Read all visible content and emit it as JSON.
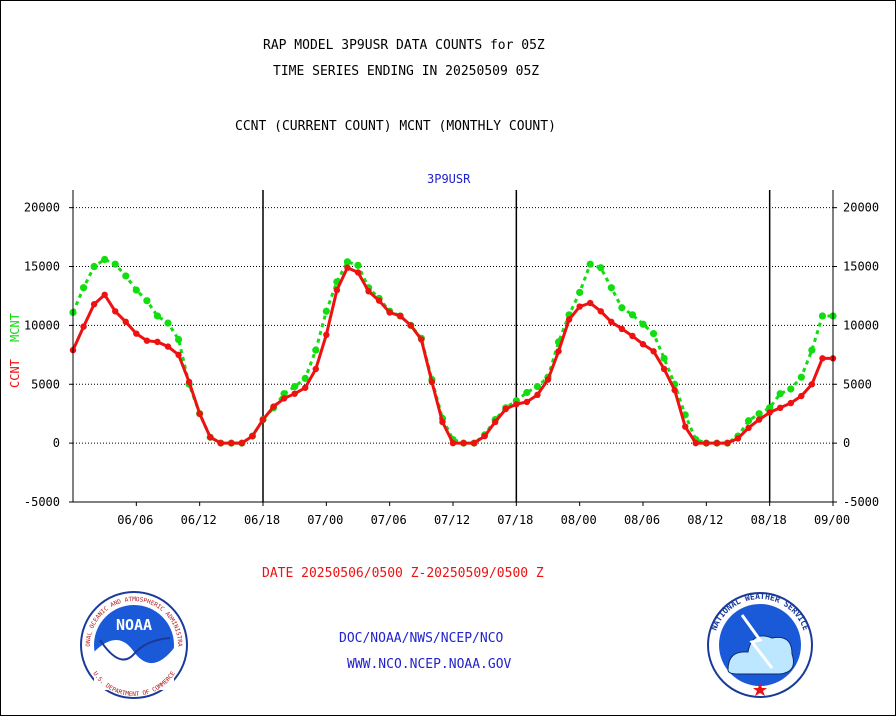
{
  "header": {
    "title_line1": "RAP MODEL 3P9USR DATA COUNTS for 05Z",
    "title_line2": "TIME SERIES ENDING IN 20250509 05Z",
    "subtitle": "CCNT (CURRENT COUNT) MCNT (MONTHLY COUNT)"
  },
  "footer": {
    "date_range": "DATE 20250506/0500 Z-20250509/0500 Z",
    "org_path": "DOC/NOAA/NWS/NCEP/NCO",
    "website": "WWW.NCO.NCEP.NOAA.GOV"
  },
  "logos": {
    "noaa_text": "NOAA",
    "noaa_ring_text": "NATIONAL OCEANIC AND ATMOSPHERIC ADMINISTRATION",
    "noaa_ring_bottom": "U.S. DEPARTMENT OF COMMERCE",
    "nws_ring_text": "NATIONAL WEATHER SERVICE"
  },
  "colors": {
    "ccnt": "#ee1111",
    "mcnt": "#11dd11",
    "plot_title": "#2222cc",
    "footer_red": "#ee1111",
    "footer_blue": "#2222cc"
  },
  "chart_data": {
    "type": "line",
    "plot_title": "3P9USR",
    "y_label_left": "CCNT",
    "y_label_mcnt": "MCNT",
    "ylim": [
      -5000,
      21500
    ],
    "yticks": [
      "20000",
      "15000",
      "10000",
      "5000",
      "0",
      "-5000"
    ],
    "ytick_values": [
      20000,
      15000,
      10000,
      5000,
      0,
      -5000
    ],
    "xlim": [
      0,
      72
    ],
    "x_tick_labels": [
      "06/06",
      "06/12",
      "06/18",
      "07/00",
      "07/06",
      "07/12",
      "07/18",
      "08/00",
      "08/06",
      "08/12",
      "08/18",
      "09/00"
    ],
    "x_tick_hours": [
      6,
      12,
      18,
      24,
      30,
      36,
      42,
      48,
      54,
      60,
      66,
      72
    ],
    "day_boundaries": [
      18,
      42,
      66
    ],
    "x": [
      0,
      1,
      2,
      3,
      4,
      5,
      6,
      7,
      8,
      9,
      10,
      11,
      12,
      13,
      14,
      15,
      16,
      17,
      18,
      19,
      20,
      21,
      22,
      23,
      24,
      25,
      26,
      27,
      28,
      29,
      30,
      31,
      32,
      33,
      34,
      35,
      36,
      37,
      38,
      39,
      40,
      41,
      42,
      43,
      44,
      45,
      46,
      47,
      48,
      49,
      50,
      51,
      52,
      53,
      54,
      55,
      56,
      57,
      58,
      59,
      60,
      61,
      62,
      63,
      64,
      65,
      66,
      67,
      68,
      69,
      70,
      71,
      72
    ],
    "series": [
      {
        "name": "CCNT",
        "values": [
          7900,
          9900,
          11800,
          12600,
          11200,
          10300,
          9300,
          8700,
          8600,
          8200,
          7500,
          5200,
          2500,
          500,
          0,
          0,
          0,
          600,
          2000,
          3100,
          3800,
          4200,
          4700,
          6300,
          9200,
          13000,
          14900,
          14500,
          12900,
          12100,
          11100,
          10800,
          10000,
          8800,
          5200,
          1800,
          0,
          0,
          0,
          600,
          1800,
          2900,
          3300,
          3500,
          4100,
          5400,
          7800,
          10500,
          11600,
          11900,
          11200,
          10300,
          9700,
          9100,
          8400,
          7800,
          6300,
          4500,
          1400,
          0,
          0,
          0,
          0,
          400,
          1300,
          2000,
          2600,
          3000,
          3400,
          4000,
          5000,
          7200,
          7200
        ]
      },
      {
        "name": "MCNT",
        "values": [
          11100,
          13200,
          15000,
          15600,
          15200,
          14200,
          13000,
          12100,
          10800,
          10200,
          8800,
          5000,
          2500,
          500,
          0,
          0,
          0,
          600,
          2000,
          3000,
          4200,
          4800,
          5500,
          7900,
          11200,
          13700,
          15400,
          15100,
          13200,
          12300,
          11200,
          10800,
          10000,
          8900,
          5400,
          2100,
          300,
          0,
          0,
          700,
          2000,
          3000,
          3600,
          4300,
          4800,
          5600,
          8600,
          10900,
          12800,
          15200,
          14900,
          13200,
          11500,
          10900,
          10100,
          9300,
          7200,
          5000,
          2400,
          300,
          0,
          0,
          0,
          600,
          1900,
          2500,
          3000,
          4200,
          4600,
          5600,
          7900,
          10800,
          10800
        ]
      }
    ]
  }
}
